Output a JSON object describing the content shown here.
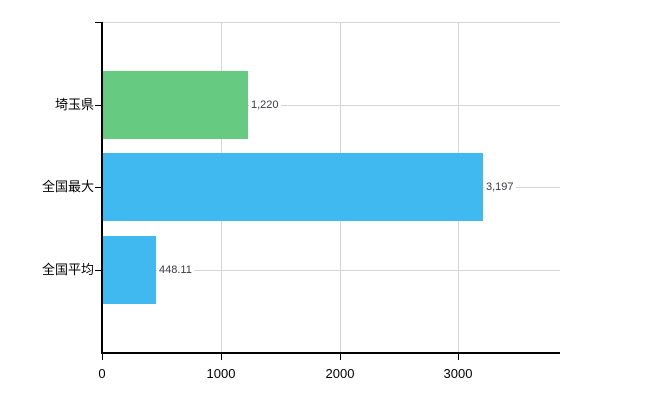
{
  "chart_data": {
    "type": "bar",
    "orientation": "horizontal",
    "title": "",
    "categories": [
      "埼玉県",
      "全国最大",
      "全国平均"
    ],
    "series": [
      {
        "name": "values",
        "values": [
          1220,
          3197,
          448.11
        ],
        "value_labels": [
          "1,220",
          "3,197",
          "448.11"
        ],
        "bar_colors": [
          "#66CB80",
          "#40B8F0",
          "#40B8F0"
        ]
      }
    ],
    "xlabel": "",
    "ylabel": "",
    "xlim": [
      0,
      3856
    ],
    "x_ticks": [
      0,
      1000,
      2000,
      3000
    ],
    "x_tick_labels": [
      "0",
      "1000",
      "2000",
      "3000"
    ],
    "grid": true,
    "legend": false
  },
  "style": {
    "background": "#FFFFFF",
    "grid_color": "#D4D4D4",
    "axis_color": "#000000",
    "value_label_color": "#3A3A44",
    "category_label_color": "#000000"
  }
}
